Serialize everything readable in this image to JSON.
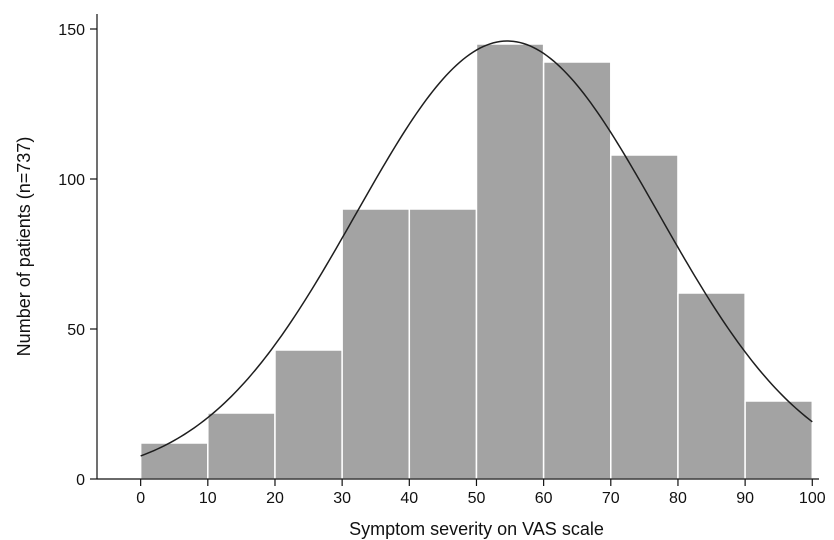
{
  "chart_data": {
    "type": "bar",
    "xlabel": "Symptom severity on VAS scale",
    "ylabel": "Number of patients (n=737)",
    "bins": [
      {
        "x0": 0,
        "x1": 10,
        "count": 12
      },
      {
        "x0": 10,
        "x1": 20,
        "count": 22
      },
      {
        "x0": 20,
        "x1": 30,
        "count": 43
      },
      {
        "x0": 30,
        "x1": 40,
        "count": 90
      },
      {
        "x0": 40,
        "x1": 50,
        "count": 90
      },
      {
        "x0": 50,
        "x1": 60,
        "count": 145
      },
      {
        "x0": 60,
        "x1": 70,
        "count": 139
      },
      {
        "x0": 70,
        "x1": 80,
        "count": 108
      },
      {
        "x0": 80,
        "x1": 90,
        "count": 62
      },
      {
        "x0": 90,
        "x1": 100,
        "count": 26
      }
    ],
    "xticks": [
      0,
      10,
      20,
      30,
      40,
      50,
      60,
      70,
      80,
      90,
      100
    ],
    "yticks": [
      0,
      50,
      100,
      150
    ],
    "xlim": [
      -6.5,
      101
    ],
    "ylim": [
      0,
      155
    ],
    "normal_curve": {
      "peak_x": 54.6,
      "peak_y": 146,
      "sd": 22.5
    },
    "grid": false,
    "legend": false,
    "colors": {
      "bar": "#a3a3a3",
      "bar_edge": "#ffffff",
      "curve": "#1e1e1e",
      "axis": "#111111"
    }
  }
}
